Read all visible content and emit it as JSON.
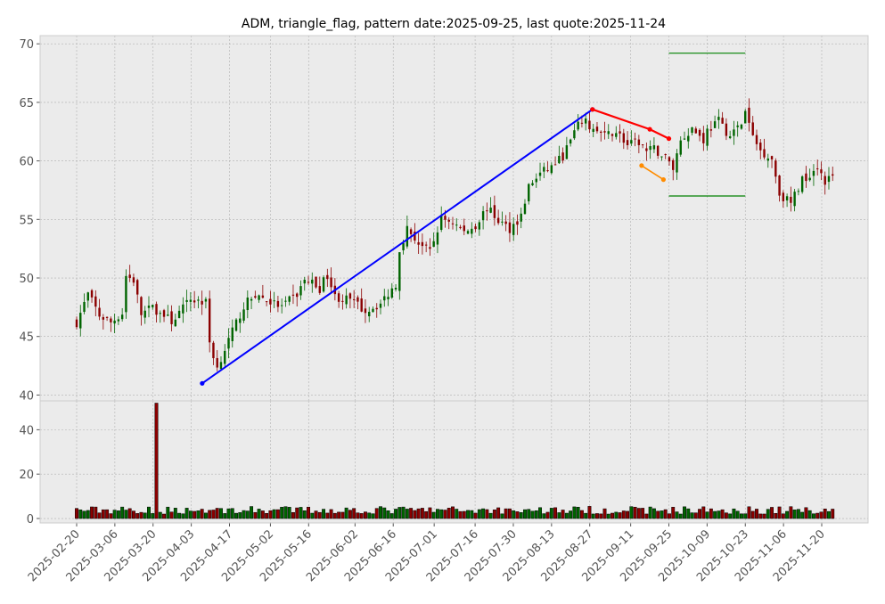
{
  "title": "ADM, triangle_flag, pattern date:2025-09-25, last quote:2025-11-24",
  "colors": {
    "panel_bg": "#ebebeb",
    "grid": "#b0b0b0",
    "up": "#006400",
    "down": "#8b0000",
    "volume_edge": "#000000",
    "trend_line": "#0000ff",
    "flag_upper": "#ff0000",
    "flag_lower": "#ff8c00",
    "target_lines": "#008000"
  },
  "chart_data": {
    "type": "candlestick",
    "price_axis": {
      "ylim": [
        39.5,
        70.7
      ],
      "ticks": [
        40,
        45,
        50,
        55,
        60,
        65,
        70
      ]
    },
    "volume_axis": {
      "ylim": [
        -2,
        53
      ],
      "ticks": [
        0,
        20,
        40
      ]
    },
    "x_ticks": [
      "2025-02-20",
      "2025-03-06",
      "2025-03-20",
      "2025-04-03",
      "2025-04-17",
      "2025-05-02",
      "2025-05-16",
      "2025-06-02",
      "2025-06-16",
      "2025-07-01",
      "2025-07-16",
      "2025-07-30",
      "2025-08-13",
      "2025-08-27",
      "2025-09-11",
      "2025-09-25",
      "2025-10-09",
      "2025-10-23",
      "2025-11-06",
      "2025-11-20"
    ],
    "close_anchors": [
      [
        0,
        46.2
      ],
      [
        3,
        48.6
      ],
      [
        6,
        46.8
      ],
      [
        9,
        46.2
      ],
      [
        12,
        47.0
      ],
      [
        13,
        50.2
      ],
      [
        15,
        49.8
      ],
      [
        17,
        46.9
      ],
      [
        20,
        47.5
      ],
      [
        25,
        46.3
      ],
      [
        28,
        47.4
      ],
      [
        30,
        48.2
      ],
      [
        34,
        47.9
      ],
      [
        35,
        44.5
      ],
      [
        37,
        42.3
      ],
      [
        38,
        43.2
      ],
      [
        41,
        45.4
      ],
      [
        44,
        47.6
      ],
      [
        47,
        48.6
      ],
      [
        50,
        48.1
      ],
      [
        54,
        47.5
      ],
      [
        58,
        48.6
      ],
      [
        60,
        49.8
      ],
      [
        62,
        49.6
      ],
      [
        64,
        49.1
      ],
      [
        66,
        50.3
      ],
      [
        68,
        48.4
      ],
      [
        72,
        48.1
      ],
      [
        76,
        47.2
      ],
      [
        80,
        47.8
      ],
      [
        84,
        49.5
      ],
      [
        85,
        52.5
      ],
      [
        87,
        54.2
      ],
      [
        90,
        53.0
      ],
      [
        93,
        52.2
      ],
      [
        96,
        55.1
      ],
      [
        99,
        54.8
      ],
      [
        102,
        53.9
      ],
      [
        105,
        54.5
      ],
      [
        108,
        56.0
      ],
      [
        111,
        54.9
      ],
      [
        114,
        54.2
      ],
      [
        117,
        55.3
      ],
      [
        119,
        57.8
      ],
      [
        122,
        58.9
      ],
      [
        125,
        59.5
      ],
      [
        128,
        60.4
      ],
      [
        131,
        62.4
      ],
      [
        133,
        63.5
      ],
      [
        136,
        62.7
      ],
      [
        139,
        62.1
      ],
      [
        142,
        62.6
      ],
      [
        145,
        61.3
      ],
      [
        148,
        61.6
      ],
      [
        150,
        60.8
      ],
      [
        152,
        61.0
      ],
      [
        155,
        60.3
      ],
      [
        157,
        59.4
      ],
      [
        159,
        61.8
      ],
      [
        162,
        62.8
      ],
      [
        165,
        61.8
      ],
      [
        166,
        62.6
      ],
      [
        169,
        63.4
      ],
      [
        172,
        62.1
      ],
      [
        175,
        63.2
      ],
      [
        176,
        64.2
      ],
      [
        178,
        62.0
      ],
      [
        180,
        60.9
      ],
      [
        183,
        60.2
      ],
      [
        185,
        57.2
      ],
      [
        188,
        56.4
      ],
      [
        191,
        58.4
      ],
      [
        193,
        58.9
      ],
      [
        195,
        59.6
      ],
      [
        197,
        58.3
      ],
      [
        199,
        58.6
      ]
    ],
    "special_volume": [
      [
        21,
        52
      ]
    ],
    "trend_line": {
      "from": [
        "2025-04-07",
        41.0
      ],
      "to": [
        "2025-08-28",
        64.4
      ]
    },
    "flag_upper": [
      [
        "2025-08-28",
        64.4
      ],
      [
        "2025-09-18",
        62.7
      ],
      [
        "2025-09-25",
        61.9
      ]
    ],
    "flag_lower": [
      [
        "2025-09-15",
        59.6
      ],
      [
        "2025-09-23",
        58.4
      ]
    ],
    "targets": [
      {
        "level": 69.2,
        "from": "2025-09-25",
        "to": "2025-10-23"
      },
      {
        "level": 57.0,
        "from": "2025-09-25",
        "to": "2025-10-23"
      }
    ]
  }
}
